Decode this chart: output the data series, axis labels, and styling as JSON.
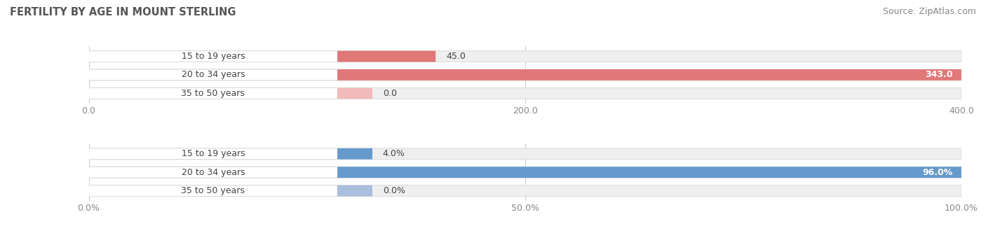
{
  "title": "FERTILITY BY AGE IN MOUNT STERLING",
  "source": "Source: ZipAtlas.com",
  "top_chart": {
    "categories": [
      "15 to 19 years",
      "20 to 34 years",
      "35 to 50 years"
    ],
    "values": [
      45.0,
      343.0,
      0.0
    ],
    "bar_color": "#E07878",
    "bar_color_min": "#F2BABA",
    "xlim": [
      0,
      400
    ],
    "xticks": [
      0.0,
      200.0,
      400.0
    ],
    "is_percent": false
  },
  "bottom_chart": {
    "categories": [
      "15 to 19 years",
      "20 to 34 years",
      "35 to 50 years"
    ],
    "values": [
      4.0,
      96.0,
      0.0
    ],
    "bar_color": "#6699CC",
    "bar_color_min": "#AABEDD",
    "xlim": [
      0,
      100
    ],
    "xticks": [
      0.0,
      50.0,
      100.0
    ],
    "is_percent": true
  },
  "bg_color": "#FFFFFF",
  "bar_bg_color": "#EFEFEF",
  "bar_outline_color": "#DDDDDD",
  "label_fontsize": 9,
  "tick_fontsize": 9,
  "title_fontsize": 10.5,
  "source_fontsize": 9,
  "title_color": "#555555",
  "source_color": "#888888",
  "tick_color": "#888888",
  "label_color": "#444444"
}
